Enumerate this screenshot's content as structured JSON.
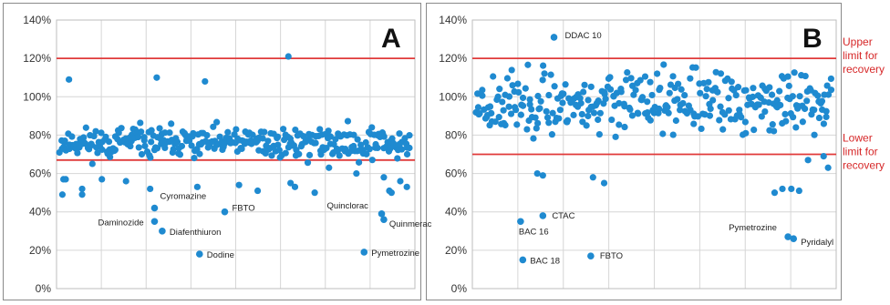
{
  "colors": {
    "point": "#1f8ad0",
    "limit": "#e03a3a",
    "grid": "#d6d6d6"
  },
  "chart_data": [
    {
      "type": "scatter",
      "panel_label": "A",
      "ylim": [
        0,
        140
      ],
      "y_ticks": [
        "0%",
        "20%",
        "40%",
        "60%",
        "80%",
        "100%",
        "120%",
        "140%"
      ],
      "grid": true,
      "x_count": 320,
      "limits": [
        {
          "y": 120
        },
        {
          "y": 67
        }
      ],
      "series": [
        {
          "seed": 11,
          "mean": 76,
          "spread": 5
        }
      ],
      "outliers": [
        {
          "i": 8,
          "y": 109
        },
        {
          "i": 88,
          "y": 110
        },
        {
          "i": 132,
          "y": 108
        },
        {
          "i": 208,
          "y": 121
        },
        {
          "i": 3,
          "y": 57
        },
        {
          "i": 5,
          "y": 57
        },
        {
          "i": 20,
          "y": 52
        },
        {
          "i": 38,
          "y": 57
        },
        {
          "i": 60,
          "y": 56
        },
        {
          "i": 82,
          "y": 52
        },
        {
          "i": 125,
          "y": 53
        },
        {
          "i": 163,
          "y": 54
        },
        {
          "i": 180,
          "y": 51
        },
        {
          "i": 210,
          "y": 55
        },
        {
          "i": 214,
          "y": 53
        },
        {
          "i": 232,
          "y": 50
        },
        {
          "i": 245,
          "y": 63
        },
        {
          "i": 270,
          "y": 60
        },
        {
          "i": 295,
          "y": 58
        },
        {
          "i": 310,
          "y": 56
        },
        {
          "i": 316,
          "y": 53
        },
        {
          "i": 300,
          "y": 51
        },
        {
          "i": 302,
          "y": 50
        },
        {
          "i": 322,
          "y": 49
        },
        {
          "i": 340,
          "y": 49
        }
      ],
      "labeled_points": [
        {
          "i": 86,
          "y": 42,
          "label": "Cyromazine",
          "dx": 6,
          "dy": -10
        },
        {
          "i": 86,
          "y": 35,
          "label": "Daminozide",
          "dx": -62,
          "dy": 4
        },
        {
          "i": 93,
          "y": 30,
          "label": "Diafenthiuron",
          "dx": 8,
          "dy": 4
        },
        {
          "i": 150,
          "y": 40,
          "label": "FBTO",
          "dx": 8,
          "dy": -1
        },
        {
          "i": 127,
          "y": 18,
          "label": "Dodine",
          "dx": 8,
          "dy": 4
        },
        {
          "i": 293,
          "y": 39,
          "label": "Quinclorac",
          "dx": -60,
          "dy": -6
        },
        {
          "i": 295,
          "y": 36,
          "label": "Quinmerac",
          "dx": 6,
          "dy": 8
        },
        {
          "i": 277,
          "y": 19,
          "label": "Pymetrozine",
          "dx": 8,
          "dy": 4
        }
      ]
    },
    {
      "type": "scatter",
      "panel_label": "B",
      "ylim": [
        0,
        140
      ],
      "y_ticks": [
        "0%",
        "20%",
        "40%",
        "60%",
        "80%",
        "100%",
        "120%",
        "140%"
      ],
      "grid": true,
      "x_count": 320,
      "limits": [
        {
          "y": 120,
          "label_lines": [
            "Upper",
            "limit for",
            "recovery"
          ]
        },
        {
          "y": 70,
          "label_lines": [
            "Lower",
            "limit for",
            "recovery"
          ]
        }
      ],
      "series": [
        {
          "seed": 23,
          "mean": 97,
          "spread": 10
        }
      ],
      "outliers": [
        {
          "i": 55,
          "y": 60
        },
        {
          "i": 60,
          "y": 59
        },
        {
          "i": 105,
          "y": 58
        },
        {
          "i": 115,
          "y": 55
        },
        {
          "i": 268,
          "y": 50
        },
        {
          "i": 275,
          "y": 52
        },
        {
          "i": 283,
          "y": 52
        },
        {
          "i": 290,
          "y": 51
        },
        {
          "i": 298,
          "y": 67
        },
        {
          "i": 312,
          "y": 69
        },
        {
          "i": 316,
          "y": 63
        }
      ],
      "labeled_points": [
        {
          "i": 70,
          "y": 131,
          "label": "DDAC 10",
          "dx": 12,
          "dy": 1
        },
        {
          "i": 40,
          "y": 35,
          "label": "BAC 16",
          "dx": -2,
          "dy": 14
        },
        {
          "i": 60,
          "y": 38,
          "label": "CTAC",
          "dx": 10,
          "dy": 3
        },
        {
          "i": 42,
          "y": 15,
          "label": "BAC 18",
          "dx": 8,
          "dy": 4
        },
        {
          "i": 103,
          "y": 17,
          "label": "FBTO",
          "dx": 10,
          "dy": 3
        },
        {
          "i": 280,
          "y": 27,
          "label": "Pymetrozine",
          "dx": -65,
          "dy": -7
        },
        {
          "i": 285,
          "y": 26,
          "label": "Pyridalyl",
          "dx": 8,
          "dy": 7
        }
      ]
    }
  ]
}
